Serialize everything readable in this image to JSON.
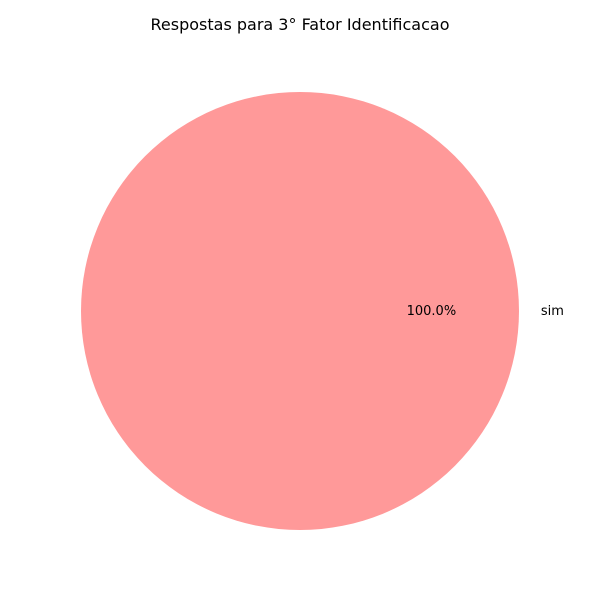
{
  "chart_data": {
    "type": "pie",
    "title": "Respostas para 3° Fator Identificacao",
    "slices": [
      {
        "label": "sim",
        "value": 100.0,
        "percent_label": "100.0%",
        "color": "#ff9999"
      }
    ],
    "legend": "none"
  }
}
